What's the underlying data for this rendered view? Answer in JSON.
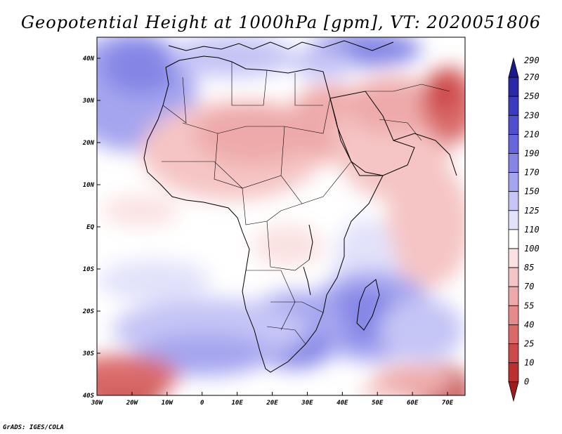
{
  "title": "Geopotential Height at 1000hPa [gpm], VT: 2020051806",
  "credit": "GrADS: IGES/COLA",
  "map": {
    "lon_labels": [
      "30W",
      "20W",
      "10W",
      "0",
      "10E",
      "20E",
      "30E",
      "40E",
      "50E",
      "60E",
      "70E"
    ],
    "lat_labels": [
      "40N",
      "30N",
      "20N",
      "10N",
      "EQ",
      "10S",
      "20S",
      "30S",
      "40S"
    ],
    "lon_range": [
      -30,
      75
    ],
    "lat_range": [
      -40,
      45
    ]
  },
  "colorbar": {
    "levels": [
      "290",
      "270",
      "250",
      "230",
      "210",
      "190",
      "170",
      "150",
      "125",
      "110",
      "100",
      "85",
      "70",
      "55",
      "40",
      "25",
      "10",
      "0"
    ],
    "colors": [
      "#1b1a8c",
      "#2a2aa8",
      "#3b3bbf",
      "#4f4fcf",
      "#6666dd",
      "#8585e6",
      "#a5a5ef",
      "#c5c5f6",
      "#e2e2fb",
      "#ffffff",
      "#fbe1e1",
      "#f5c5c5",
      "#eeaaaa",
      "#e58b8b",
      "#da6a6a",
      "#cc4a4a",
      "#bb2f2f",
      "#a01b1b"
    ]
  }
}
